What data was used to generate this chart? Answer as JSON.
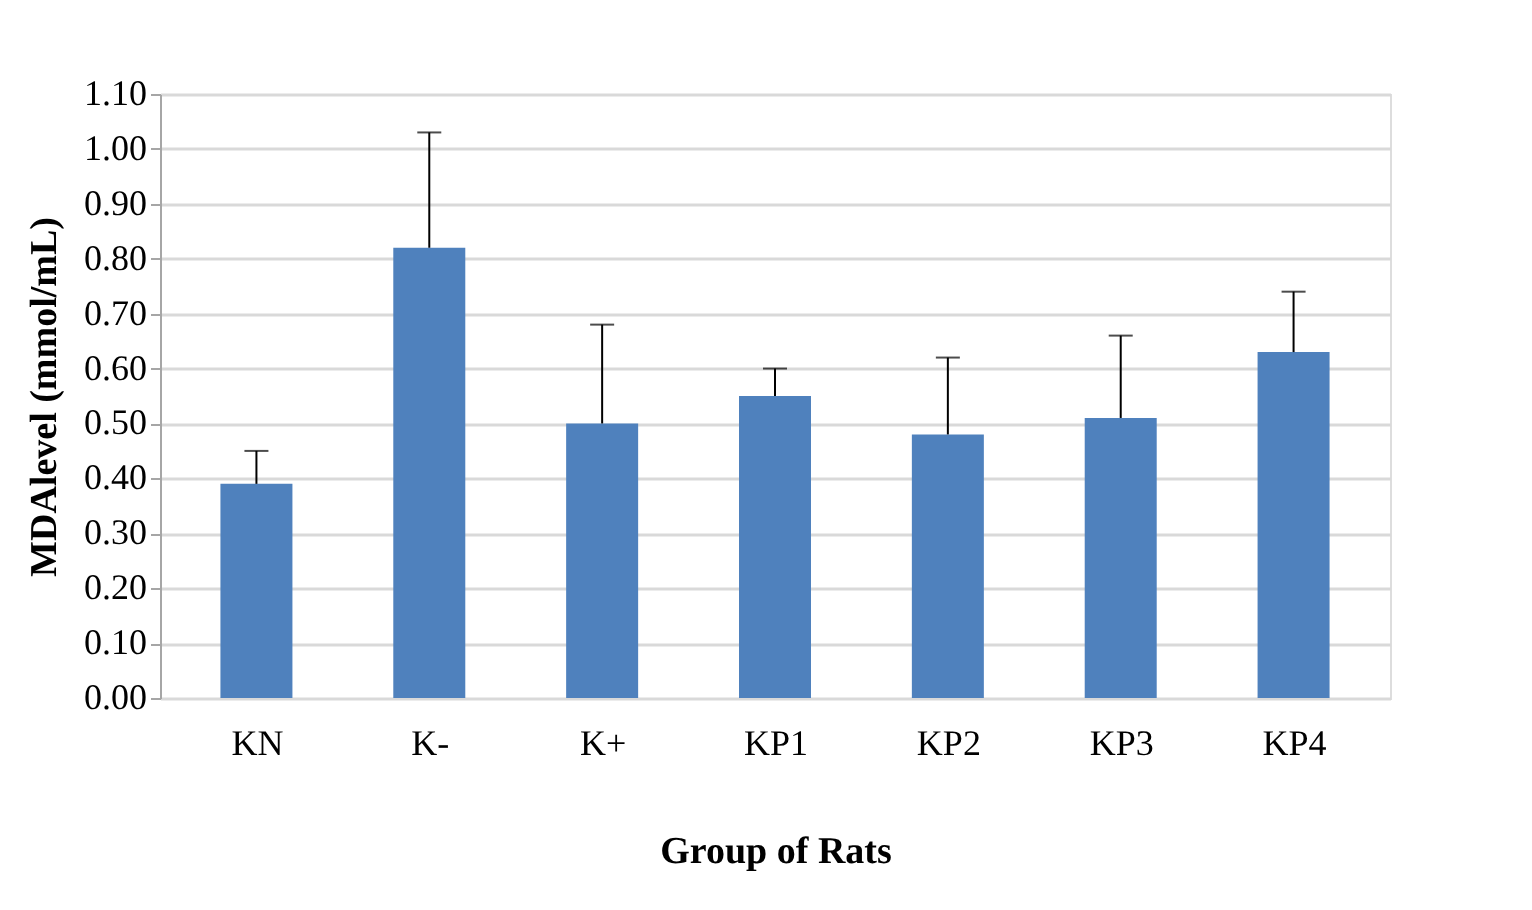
{
  "chart_data": {
    "type": "bar",
    "xlabel": "Group of Rats",
    "ylabel": "MDAlevel (mmol/mL)",
    "categories": [
      "KN",
      "K-",
      "K+",
      "KP1",
      "KP2",
      "KP3",
      "KP4"
    ],
    "values": [
      0.39,
      0.82,
      0.5,
      0.55,
      0.48,
      0.51,
      0.63
    ],
    "errors": [
      [
        0.39,
        0.45
      ],
      [
        0.82,
        1.03
      ],
      [
        0.5,
        0.68
      ],
      [
        0.55,
        0.6
      ],
      [
        0.48,
        0.62
      ],
      [
        0.51,
        0.66
      ],
      [
        0.63,
        0.74
      ]
    ],
    "color": "#4f81bd",
    "ylim": [
      0,
      1.1
    ],
    "yticks": [
      {
        "value": 0,
        "label": "0.00"
      },
      {
        "value": 0.1,
        "label": "0.10"
      },
      {
        "value": 0.2,
        "label": "0.20"
      },
      {
        "value": 0.3,
        "label": "0.30"
      },
      {
        "value": 0.4,
        "label": "0.40"
      },
      {
        "value": 0.5,
        "label": "0.50"
      },
      {
        "value": 0.6,
        "label": "0.60"
      },
      {
        "value": 0.7,
        "label": "0.70"
      },
      {
        "value": 0.8,
        "label": "0.80"
      },
      {
        "value": 0.9,
        "label": "0.90"
      },
      {
        "value": 1.0,
        "label": "1.00"
      },
      {
        "value": 1.1,
        "label": "1.10"
      }
    ],
    "grid": "y"
  }
}
